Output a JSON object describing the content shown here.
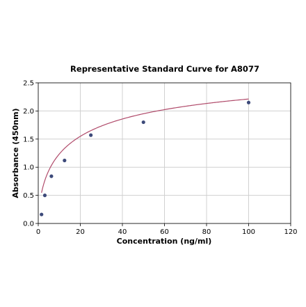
{
  "chart_data": {
    "type": "scatter",
    "title": "Representative Standard Curve for A8077",
    "xlabel": "Concentration (ng/ml)",
    "ylabel": "Absorbance (450nm)",
    "xlim": [
      0,
      120
    ],
    "ylim": [
      0,
      2.5
    ],
    "x_ticks": [
      0,
      20,
      40,
      60,
      80,
      100,
      120
    ],
    "y_ticks": [
      0.0,
      0.5,
      1.0,
      1.5,
      2.0,
      2.5
    ],
    "x_tick_labels": [
      "0",
      "20",
      "40",
      "60",
      "80",
      "100",
      "120"
    ],
    "y_tick_labels": [
      "0.0",
      "0.5",
      "1.0",
      "1.5",
      "2.0",
      "2.5"
    ],
    "grid": true,
    "series": [
      {
        "points": [
          {
            "x": 1.56,
            "y": 0.16
          },
          {
            "x": 3.13,
            "y": 0.5
          },
          {
            "x": 6.25,
            "y": 0.84
          },
          {
            "x": 12.5,
            "y": 1.12
          },
          {
            "x": 25,
            "y": 1.57
          },
          {
            "x": 50,
            "y": 1.8
          },
          {
            "x": 100,
            "y": 2.15
          }
        ],
        "color": "#3d4a7a"
      }
    ],
    "fit_curve": {
      "type": "four-parameter-logistic",
      "color": "#b04a6a",
      "params": {
        "a": 0.0,
        "b": 0.62,
        "c": 17.0,
        "d": 2.95
      }
    }
  }
}
